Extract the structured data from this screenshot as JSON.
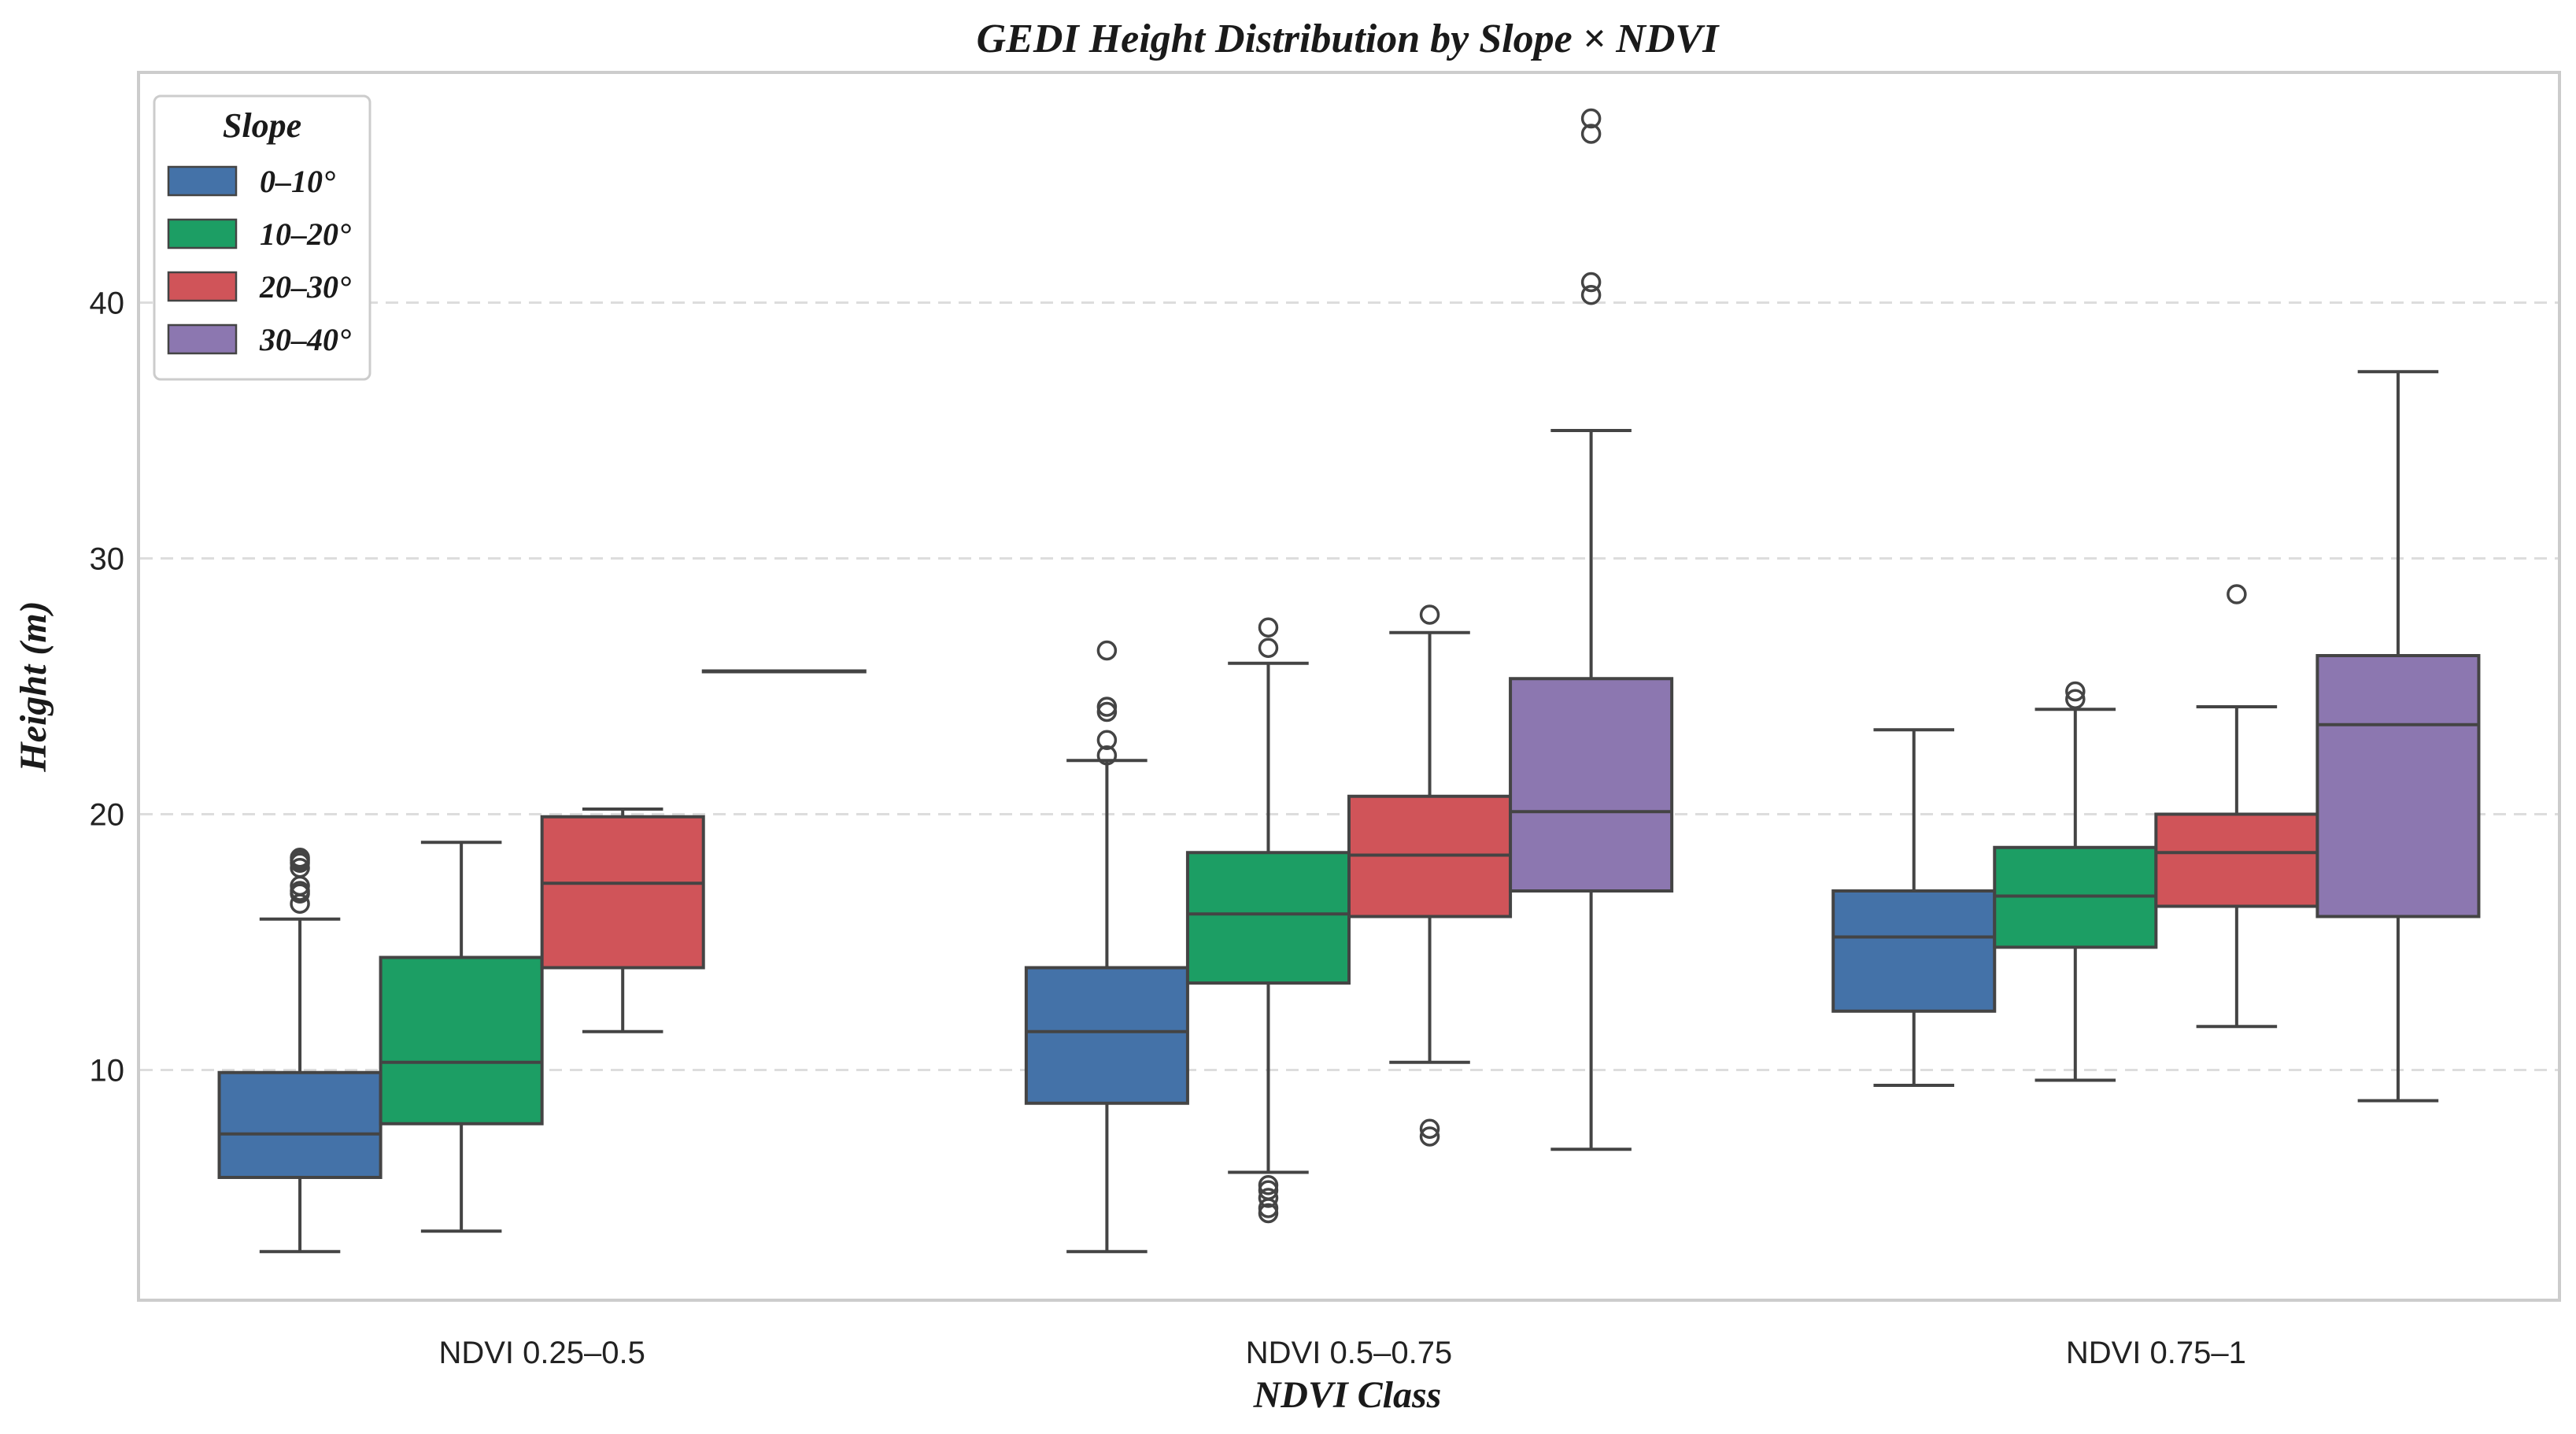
{
  "chart_data": {
    "type": "boxplot",
    "title": "GEDI Height Distribution by Slope × NDVI",
    "xlabel": "NDVI Class",
    "ylabel": "Height (m)",
    "ylim": [
      1,
      49
    ],
    "yticks": [
      10,
      20,
      30,
      40
    ],
    "grid": "y-dashed",
    "legend": {
      "title": "Slope",
      "placement": "top-left"
    },
    "categories": [
      "NDVI 0.25–0.5",
      "NDVI 0.5–0.75",
      "NDVI 0.75–1"
    ],
    "series": [
      {
        "name": "0–10°",
        "color": "#4472a8",
        "boxes": [
          {
            "whislo": 2.9,
            "q1": 5.8,
            "med": 7.5,
            "q3": 9.9,
            "whishi": 15.9,
            "fliers": [
              16.5,
              16.9,
              17.0,
              17.2,
              17.9,
              18.1,
              18.2,
              18.3
            ]
          },
          {
            "whislo": 2.9,
            "q1": 8.7,
            "med": 11.5,
            "q3": 14.0,
            "whishi": 22.1,
            "fliers": [
              22.3,
              22.9,
              24.0,
              24.2,
              26.4
            ]
          },
          {
            "whislo": 9.4,
            "q1": 12.3,
            "med": 15.2,
            "q3": 17.0,
            "whishi": 23.3,
            "fliers": []
          }
        ]
      },
      {
        "name": "10–20°",
        "color": "#1c9e64",
        "boxes": [
          {
            "whislo": 3.7,
            "q1": 7.9,
            "med": 10.3,
            "q3": 14.4,
            "whishi": 18.9,
            "fliers": []
          },
          {
            "whislo": 6.0,
            "q1": 13.4,
            "med": 16.1,
            "q3": 18.5,
            "whishi": 25.9,
            "fliers": [
              4.4,
              4.6,
              5.0,
              5.3,
              5.5,
              26.5,
              27.3
            ]
          },
          {
            "whislo": 9.6,
            "q1": 14.8,
            "med": 16.8,
            "q3": 18.7,
            "whishi": 24.1,
            "fliers": [
              24.5,
              24.8
            ]
          }
        ]
      },
      {
        "name": "20–30°",
        "color": "#d05459",
        "boxes": [
          {
            "whislo": 11.5,
            "q1": 14.0,
            "med": 17.3,
            "q3": 19.9,
            "whishi": 20.2,
            "fliers": []
          },
          {
            "whislo": 10.3,
            "q1": 16.0,
            "med": 18.4,
            "q3": 20.7,
            "whishi": 27.1,
            "fliers": [
              7.4,
              7.7,
              27.8
            ]
          },
          {
            "whislo": 11.7,
            "q1": 16.4,
            "med": 18.5,
            "q3": 20.0,
            "whishi": 24.2,
            "fliers": [
              28.6
            ]
          }
        ]
      },
      {
        "name": "30–40°",
        "color": "#8c77b0",
        "boxes": [
          {
            "whislo": 25.6,
            "q1": 25.6,
            "med": 25.6,
            "q3": 25.6,
            "whishi": 25.6,
            "fliers": []
          },
          {
            "whislo": 6.9,
            "q1": 17.0,
            "med": 20.1,
            "q3": 25.3,
            "whishi": 35.0,
            "fliers": [
              40.3,
              40.8,
              46.6,
              47.2
            ]
          },
          {
            "whislo": 8.8,
            "q1": 16.0,
            "med": 23.5,
            "q3": 26.2,
            "whishi": 37.3,
            "fliers": []
          }
        ]
      }
    ]
  }
}
